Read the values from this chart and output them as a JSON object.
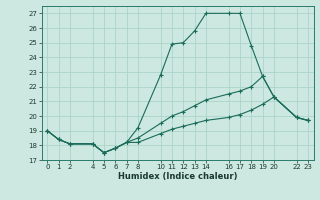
{
  "xlabel": "Humidex (Indice chaleur)",
  "bg_color": "#cce8e0",
  "grid_color": "#aad4c8",
  "line_color": "#1a6b5a",
  "xlim": [
    -0.5,
    23.5
  ],
  "ylim": [
    17,
    27.5
  ],
  "yticks": [
    17,
    18,
    19,
    20,
    21,
    22,
    23,
    24,
    25,
    26,
    27
  ],
  "xticks": [
    0,
    1,
    2,
    4,
    5,
    6,
    7,
    8,
    10,
    11,
    12,
    13,
    14,
    16,
    17,
    18,
    19,
    20,
    22,
    23
  ],
  "xtick_labels": [
    "0",
    "1",
    "2",
    "4",
    "5",
    "6",
    "7",
    "8",
    "10",
    "11",
    "12",
    "13",
    "14",
    "16",
    "17",
    "18",
    "19",
    "20",
    "22",
    "23"
  ],
  "lines": [
    {
      "x": [
        0,
        1,
        2,
        4,
        5,
        6,
        7,
        8,
        10,
        11,
        12,
        13,
        14,
        16,
        17,
        18,
        19,
        20,
        22,
        23
      ],
      "y": [
        19,
        18.4,
        18.1,
        18.1,
        17.5,
        17.8,
        18.2,
        19.2,
        22.8,
        24.9,
        25.0,
        25.8,
        27.0,
        27.0,
        27.0,
        24.8,
        22.7,
        21.3,
        19.9,
        19.7
      ]
    },
    {
      "x": [
        0,
        1,
        2,
        4,
        5,
        6,
        7,
        8,
        10,
        11,
        12,
        13,
        14,
        16,
        17,
        18,
        19,
        20,
        22,
        23
      ],
      "y": [
        19,
        18.4,
        18.1,
        18.1,
        17.5,
        17.8,
        18.2,
        18.5,
        19.5,
        20.0,
        20.3,
        20.7,
        21.1,
        21.5,
        21.7,
        22.0,
        22.7,
        21.3,
        19.9,
        19.7
      ]
    },
    {
      "x": [
        0,
        1,
        2,
        4,
        5,
        6,
        7,
        8,
        10,
        11,
        12,
        13,
        14,
        16,
        17,
        18,
        19,
        20,
        22,
        23
      ],
      "y": [
        19,
        18.4,
        18.1,
        18.1,
        17.5,
        17.8,
        18.2,
        18.2,
        18.8,
        19.1,
        19.3,
        19.5,
        19.7,
        19.9,
        20.1,
        20.4,
        20.8,
        21.3,
        19.9,
        19.7
      ]
    }
  ]
}
